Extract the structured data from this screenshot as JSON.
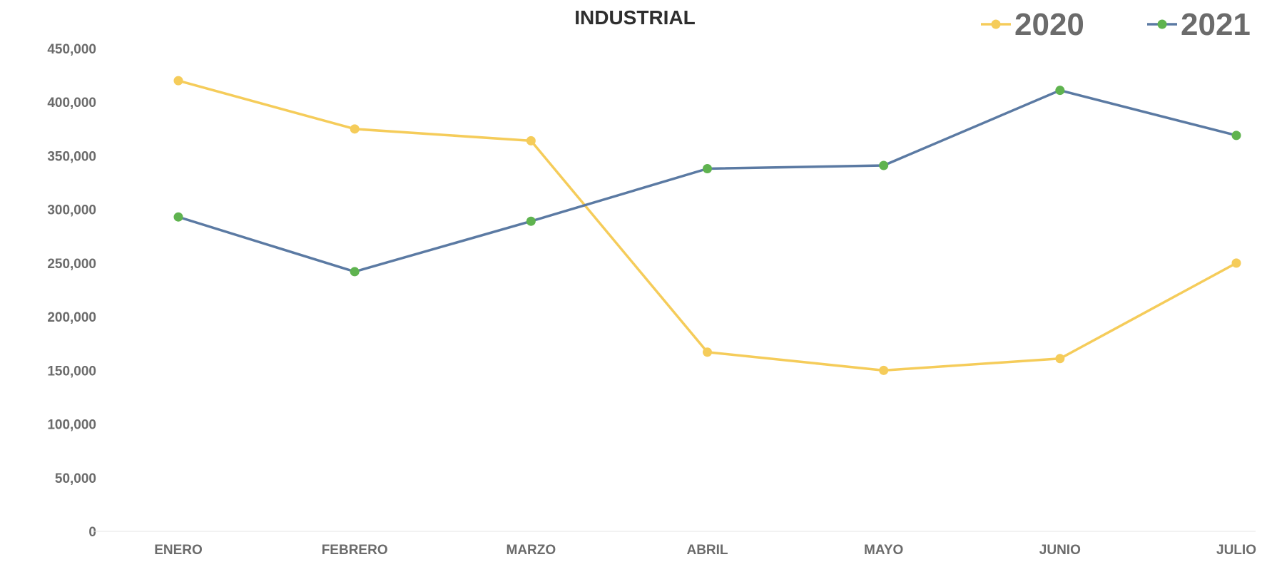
{
  "chart_data": {
    "type": "line",
    "title": "INDUSTRIAL",
    "categories": [
      "ENERO",
      "FEBRERO",
      "MARZO",
      "ABRIL",
      "MAYO",
      "JUNIO",
      "JULIO"
    ],
    "series": [
      {
        "name": "2020",
        "color": "#f5cc5a",
        "marker_color": "#f5cc5a",
        "values": [
          420000,
          375000,
          364000,
          167000,
          150000,
          161000,
          250000
        ]
      },
      {
        "name": "2021",
        "color": "#5b7aa3",
        "marker_color": "#5fb34f",
        "values": [
          293000,
          242000,
          289000,
          338000,
          341000,
          411000,
          369000
        ]
      }
    ],
    "ylim": [
      0,
      450000
    ],
    "yticks": [
      "0",
      "50,000",
      "100,000",
      "150,000",
      "200,000",
      "250,000",
      "300,000",
      "350,000",
      "400,000",
      "450,000"
    ],
    "grid": false,
    "legend_position": "top-right"
  }
}
